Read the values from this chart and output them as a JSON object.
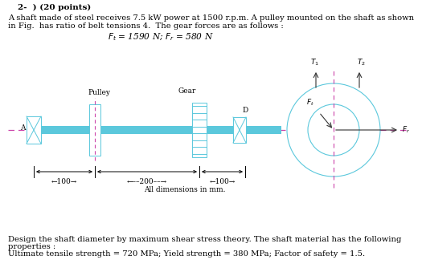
{
  "title_line": "2-  ) (20 points)",
  "para1": "A shaft made of steel receives 7.5 kW power at 1500 r.p.m. A pulley mounted on the shaft as shown",
  "para2": "in Fig.  has ratio of belt tensions 4.  The gear forces are as follows :",
  "formula1": "$F_t$ = 1590 N; $F_r$ = 580 N",
  "bottom1": "Design the shaft diameter by maximum shear stress theory. The shaft material has the following",
  "bottom2": "properties :",
  "bottom3": "Ultimate tensile strength = 720 MPa; Yield strength = 380 MPa; Factor of safety = 1.5.",
  "dim_label": "All dimensions in mm.",
  "shaft_color": "#5bc8dc",
  "dashed_color": "#cc44aa",
  "arrow_color": "#333333"
}
